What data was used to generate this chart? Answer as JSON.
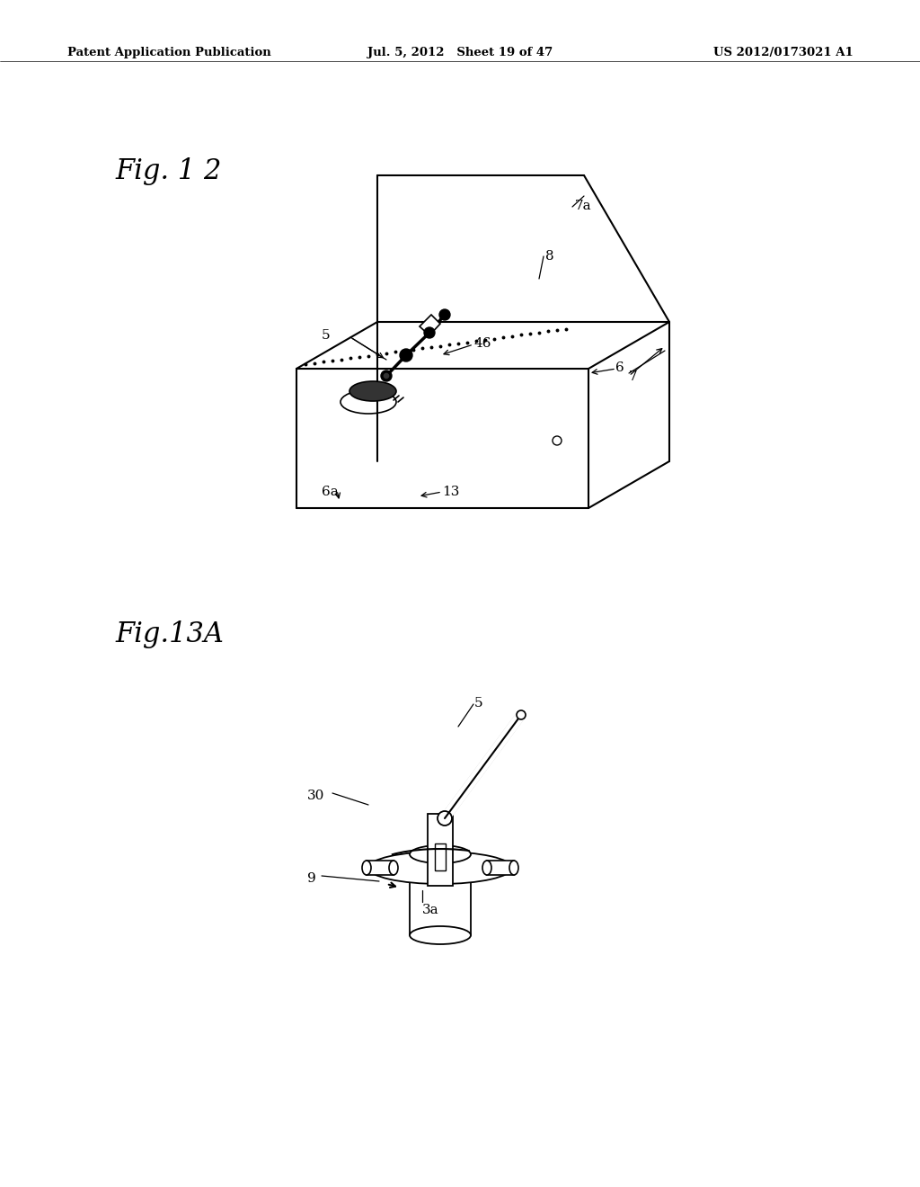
{
  "background_color": "#ffffff",
  "header_left": "Patent Application Publication",
  "header_center": "Jul. 5, 2012   Sheet 19 of 47",
  "header_right": "US 2012/0173021 A1",
  "fig12_label": "Fig. 1 2",
  "fig13a_label": "Fig.13A"
}
